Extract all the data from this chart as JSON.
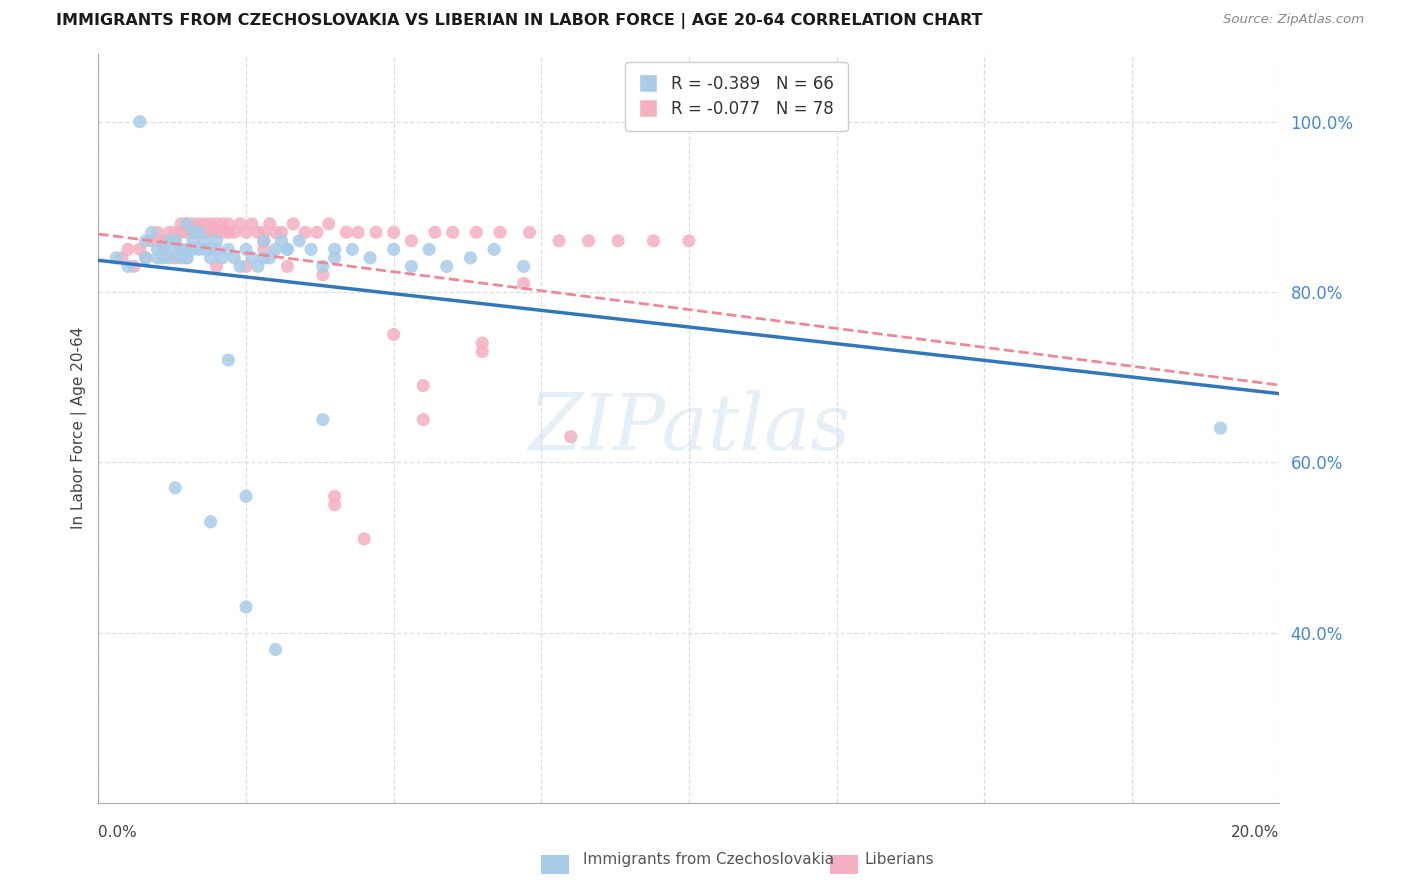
{
  "title": "IMMIGRANTS FROM CZECHOSLOVAKIA VS LIBERIAN IN LABOR FORCE | AGE 20-64 CORRELATION CHART",
  "source": "Source: ZipAtlas.com",
  "ylabel": "In Labor Force | Age 20-64",
  "blue_R": -0.389,
  "blue_N": 66,
  "pink_R": -0.077,
  "pink_N": 78,
  "blue_color": "#a8cce8",
  "pink_color": "#f4b0c0",
  "blue_line_color": "#3377bb",
  "pink_line_color": "#ee8899",
  "watermark": "ZIPatlas",
  "xmin": 0.0,
  "xmax": 0.2,
  "ymin": 0.2,
  "ymax": 1.08,
  "blue_scatter_x": [
    0.003,
    0.005,
    0.007,
    0.008,
    0.008,
    0.009,
    0.01,
    0.01,
    0.011,
    0.011,
    0.012,
    0.012,
    0.013,
    0.013,
    0.014,
    0.014,
    0.015,
    0.015,
    0.015,
    0.016,
    0.016,
    0.016,
    0.017,
    0.017,
    0.018,
    0.018,
    0.019,
    0.019,
    0.02,
    0.02,
    0.021,
    0.022,
    0.023,
    0.024,
    0.025,
    0.026,
    0.027,
    0.028,
    0.029,
    0.03,
    0.031,
    0.032,
    0.034,
    0.036,
    0.038,
    0.04,
    0.043,
    0.046,
    0.05,
    0.053,
    0.056,
    0.059,
    0.063,
    0.067,
    0.072,
    0.028,
    0.032,
    0.025,
    0.04,
    0.013,
    0.019,
    0.022,
    0.025,
    0.03,
    0.038,
    0.19
  ],
  "blue_scatter_y": [
    0.84,
    0.83,
    1.0,
    0.84,
    0.86,
    0.87,
    0.85,
    0.84,
    0.84,
    0.85,
    0.84,
    0.86,
    0.86,
    0.85,
    0.85,
    0.84,
    0.88,
    0.85,
    0.84,
    0.87,
    0.86,
    0.85,
    0.87,
    0.85,
    0.86,
    0.85,
    0.84,
    0.85,
    0.86,
    0.85,
    0.84,
    0.85,
    0.84,
    0.83,
    0.85,
    0.84,
    0.83,
    0.84,
    0.84,
    0.85,
    0.86,
    0.85,
    0.86,
    0.85,
    0.83,
    0.84,
    0.85,
    0.84,
    0.85,
    0.83,
    0.85,
    0.83,
    0.84,
    0.85,
    0.83,
    0.86,
    0.85,
    0.56,
    0.85,
    0.57,
    0.53,
    0.72,
    0.43,
    0.38,
    0.65,
    0.64
  ],
  "pink_scatter_x": [
    0.004,
    0.005,
    0.006,
    0.007,
    0.008,
    0.009,
    0.01,
    0.01,
    0.011,
    0.011,
    0.012,
    0.012,
    0.013,
    0.013,
    0.014,
    0.014,
    0.015,
    0.015,
    0.016,
    0.016,
    0.017,
    0.017,
    0.018,
    0.018,
    0.019,
    0.019,
    0.02,
    0.02,
    0.021,
    0.021,
    0.022,
    0.022,
    0.023,
    0.024,
    0.025,
    0.026,
    0.027,
    0.028,
    0.029,
    0.03,
    0.031,
    0.033,
    0.035,
    0.037,
    0.039,
    0.042,
    0.044,
    0.047,
    0.05,
    0.053,
    0.057,
    0.06,
    0.064,
    0.068,
    0.073,
    0.078,
    0.083,
    0.088,
    0.094,
    0.1,
    0.013,
    0.015,
    0.02,
    0.025,
    0.028,
    0.038,
    0.04,
    0.05,
    0.055,
    0.065,
    0.028,
    0.032,
    0.04,
    0.045,
    0.055,
    0.065,
    0.072,
    0.08
  ],
  "pink_scatter_y": [
    0.84,
    0.85,
    0.83,
    0.85,
    0.84,
    0.86,
    0.86,
    0.87,
    0.86,
    0.85,
    0.86,
    0.87,
    0.86,
    0.87,
    0.87,
    0.88,
    0.87,
    0.88,
    0.88,
    0.87,
    0.88,
    0.87,
    0.88,
    0.87,
    0.88,
    0.87,
    0.87,
    0.88,
    0.87,
    0.88,
    0.87,
    0.88,
    0.87,
    0.88,
    0.87,
    0.88,
    0.87,
    0.87,
    0.88,
    0.87,
    0.87,
    0.88,
    0.87,
    0.87,
    0.88,
    0.87,
    0.87,
    0.87,
    0.87,
    0.86,
    0.87,
    0.87,
    0.87,
    0.87,
    0.87,
    0.86,
    0.86,
    0.86,
    0.86,
    0.86,
    0.84,
    0.84,
    0.83,
    0.83,
    0.85,
    0.82,
    0.55,
    0.75,
    0.69,
    0.74,
    0.86,
    0.83,
    0.56,
    0.51,
    0.65,
    0.73,
    0.81,
    0.63
  ]
}
